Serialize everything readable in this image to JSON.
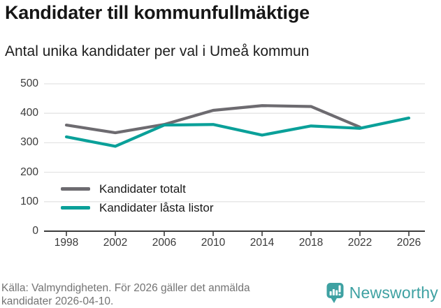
{
  "header": {
    "title": "Kandidater till kommunfullmäktige",
    "subtitle": "Antal unika kandidater per val i Umeå kommun"
  },
  "chart_data": {
    "type": "line",
    "x": [
      "1998",
      "2002",
      "2006",
      "2010",
      "2014",
      "2018",
      "2022",
      "2026"
    ],
    "series": [
      {
        "name": "Kandidater totalt",
        "color": "#6d6b70",
        "values": [
          360,
          334,
          362,
          410,
          426,
          423,
          353,
          null
        ]
      },
      {
        "name": "Kandidater låsta listor",
        "color": "#0aa099",
        "values": [
          320,
          288,
          360,
          362,
          326,
          357,
          349,
          384
        ]
      }
    ],
    "title": "Kandidater till kommunfullmäktige",
    "subtitle": "Antal unika kandidater per val i Umeå kommun",
    "xlabel": "",
    "ylabel": "",
    "ylim": [
      0,
      500
    ],
    "yticks": [
      0,
      100,
      200,
      300,
      400,
      500
    ],
    "grid": true,
    "legend_position": "inside-bottom-left"
  },
  "footer": {
    "source_line1": "Källa: Valmyndigheten. För 2026 gäller det anmälda",
    "source_line2": "kandidater 2026-04-10.",
    "brand": "Newsworthy"
  },
  "colors": {
    "grid": "#e4e4e4",
    "axis": "#3c3c3c",
    "brand_teal": "#3ea1a2"
  }
}
